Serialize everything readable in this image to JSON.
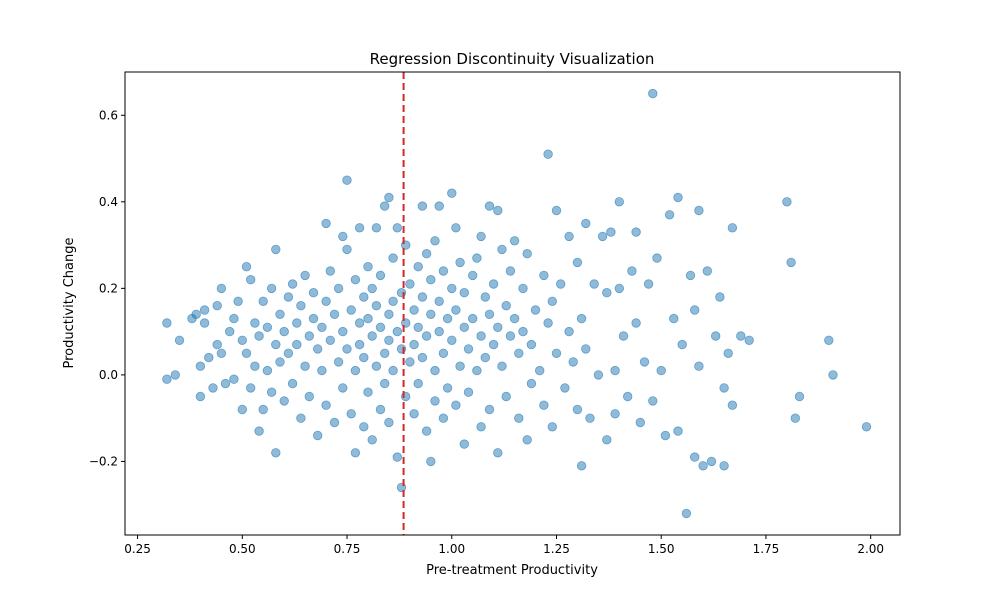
{
  "chart_data": {
    "type": "scatter",
    "title": "Regression Discontinuity Visualization",
    "xlabel": "Pre-treatment Productivity",
    "ylabel": "Productivity Change",
    "xlim": [
      0.22,
      2.07
    ],
    "ylim": [
      -0.37,
      0.7
    ],
    "xticks": [
      0.25,
      0.5,
      0.75,
      1.0,
      1.25,
      1.5,
      1.75,
      2.0
    ],
    "xtick_labels": [
      "0.25",
      "0.50",
      "0.75",
      "1.00",
      "1.25",
      "1.50",
      "1.75",
      "2.00"
    ],
    "yticks": [
      -0.2,
      0.0,
      0.2,
      0.4,
      0.6
    ],
    "ytick_labels": [
      "−0.2",
      "0.0",
      "0.2",
      "0.4",
      "0.6"
    ],
    "grid": false,
    "threshold": {
      "x": 0.885,
      "color": "#d62728",
      "style": "dashed"
    },
    "point_color": "#1f77b4",
    "point_alpha": 0.5,
    "points": [
      [
        0.32,
        -0.01
      ],
      [
        0.32,
        0.12
      ],
      [
        0.34,
        0.0
      ],
      [
        0.35,
        0.08
      ],
      [
        0.38,
        0.13
      ],
      [
        0.39,
        0.14
      ],
      [
        0.4,
        0.02
      ],
      [
        0.4,
        -0.05
      ],
      [
        0.41,
        0.12
      ],
      [
        0.41,
        0.15
      ],
      [
        0.42,
        0.04
      ],
      [
        0.43,
        -0.03
      ],
      [
        0.44,
        0.07
      ],
      [
        0.44,
        0.16
      ],
      [
        0.45,
        0.2
      ],
      [
        0.45,
        0.05
      ],
      [
        0.46,
        -0.02
      ],
      [
        0.47,
        0.1
      ],
      [
        0.48,
        0.13
      ],
      [
        0.48,
        -0.01
      ],
      [
        0.49,
        0.17
      ],
      [
        0.5,
        0.08
      ],
      [
        0.5,
        -0.08
      ],
      [
        0.51,
        0.25
      ],
      [
        0.51,
        0.05
      ],
      [
        0.52,
        0.22
      ],
      [
        0.52,
        -0.03
      ],
      [
        0.53,
        0.12
      ],
      [
        0.53,
        0.02
      ],
      [
        0.54,
        -0.13
      ],
      [
        0.54,
        0.09
      ],
      [
        0.55,
        0.17
      ],
      [
        0.55,
        -0.08
      ],
      [
        0.56,
        0.01
      ],
      [
        0.56,
        0.11
      ],
      [
        0.57,
        0.2
      ],
      [
        0.57,
        -0.04
      ],
      [
        0.58,
        0.29
      ],
      [
        0.58,
        -0.18
      ],
      [
        0.58,
        0.07
      ],
      [
        0.59,
        0.14
      ],
      [
        0.59,
        0.03
      ],
      [
        0.6,
        0.1
      ],
      [
        0.6,
        -0.06
      ],
      [
        0.61,
        0.18
      ],
      [
        0.61,
        0.05
      ],
      [
        0.62,
        0.21
      ],
      [
        0.62,
        -0.02
      ],
      [
        0.63,
        0.12
      ],
      [
        0.63,
        0.07
      ],
      [
        0.64,
        -0.1
      ],
      [
        0.64,
        0.16
      ],
      [
        0.65,
        0.02
      ],
      [
        0.65,
        0.23
      ],
      [
        0.66,
        0.09
      ],
      [
        0.66,
        -0.05
      ],
      [
        0.67,
        0.13
      ],
      [
        0.67,
        0.19
      ],
      [
        0.68,
        -0.14
      ],
      [
        0.68,
        0.06
      ],
      [
        0.69,
        0.11
      ],
      [
        0.69,
        0.01
      ],
      [
        0.7,
        0.35
      ],
      [
        0.7,
        0.17
      ],
      [
        0.7,
        -0.07
      ],
      [
        0.71,
        0.24
      ],
      [
        0.71,
        0.08
      ],
      [
        0.72,
        -0.11
      ],
      [
        0.72,
        0.14
      ],
      [
        0.73,
        0.03
      ],
      [
        0.73,
        0.2
      ],
      [
        0.74,
        0.32
      ],
      [
        0.74,
        -0.03
      ],
      [
        0.74,
        0.1
      ],
      [
        0.75,
        0.45
      ],
      [
        0.75,
        0.29
      ],
      [
        0.75,
        0.06
      ],
      [
        0.76,
        -0.09
      ],
      [
        0.76,
        0.15
      ],
      [
        0.77,
        0.22
      ],
      [
        0.77,
        0.01
      ],
      [
        0.77,
        -0.18
      ],
      [
        0.78,
        0.34
      ],
      [
        0.78,
        0.12
      ],
      [
        0.78,
        0.07
      ],
      [
        0.79,
        -0.12
      ],
      [
        0.79,
        0.18
      ],
      [
        0.79,
        0.04
      ],
      [
        0.8,
        0.25
      ],
      [
        0.8,
        -0.04
      ],
      [
        0.8,
        0.13
      ],
      [
        0.81,
        0.09
      ],
      [
        0.81,
        -0.15
      ],
      [
        0.81,
        0.2
      ],
      [
        0.82,
        0.34
      ],
      [
        0.82,
        0.02
      ],
      [
        0.82,
        0.16
      ],
      [
        0.83,
        -0.08
      ],
      [
        0.83,
        0.11
      ],
      [
        0.83,
        0.23
      ],
      [
        0.84,
        0.39
      ],
      [
        0.84,
        0.05
      ],
      [
        0.84,
        -0.02
      ],
      [
        0.85,
        0.41
      ],
      [
        0.85,
        0.14
      ],
      [
        0.85,
        0.08
      ],
      [
        0.85,
        -0.11
      ],
      [
        0.86,
        0.27
      ],
      [
        0.86,
        0.01
      ],
      [
        0.86,
        0.17
      ],
      [
        0.87,
        -0.19
      ],
      [
        0.87,
        0.1
      ],
      [
        0.87,
        0.34
      ],
      [
        0.88,
        -0.26
      ],
      [
        0.88,
        0.06
      ],
      [
        0.88,
        0.19
      ],
      [
        0.89,
        0.3
      ],
      [
        0.89,
        -0.05
      ],
      [
        0.89,
        0.12
      ],
      [
        0.9,
        0.03
      ],
      [
        0.9,
        0.21
      ],
      [
        0.91,
        -0.09
      ],
      [
        0.91,
        0.15
      ],
      [
        0.91,
        0.07
      ],
      [
        0.92,
        0.25
      ],
      [
        0.92,
        -0.02
      ],
      [
        0.92,
        0.11
      ],
      [
        0.93,
        0.39
      ],
      [
        0.93,
        0.18
      ],
      [
        0.93,
        0.04
      ],
      [
        0.94,
        -0.13
      ],
      [
        0.94,
        0.28
      ],
      [
        0.94,
        0.09
      ],
      [
        0.95,
        -0.2
      ],
      [
        0.95,
        0.14
      ],
      [
        0.95,
        0.22
      ],
      [
        0.96,
        0.01
      ],
      [
        0.96,
        0.31
      ],
      [
        0.96,
        -0.06
      ],
      [
        0.97,
        0.39
      ],
      [
        0.97,
        0.1
      ],
      [
        0.97,
        0.17
      ],
      [
        0.98,
        -0.1
      ],
      [
        0.98,
        0.05
      ],
      [
        0.98,
        0.24
      ],
      [
        0.99,
        0.13
      ],
      [
        0.99,
        -0.03
      ],
      [
        1.0,
        0.42
      ],
      [
        1.0,
        0.2
      ],
      [
        1.0,
        0.08
      ],
      [
        1.01,
        -0.07
      ],
      [
        1.01,
        0.34
      ],
      [
        1.01,
        0.15
      ],
      [
        1.02,
        0.02
      ],
      [
        1.02,
        0.26
      ],
      [
        1.03,
        -0.16
      ],
      [
        1.03,
        0.11
      ],
      [
        1.03,
        0.19
      ],
      [
        1.04,
        0.06
      ],
      [
        1.04,
        -0.04
      ],
      [
        1.05,
        0.23
      ],
      [
        1.05,
        0.13
      ],
      [
        1.06,
        0.01
      ],
      [
        1.06,
        0.27
      ],
      [
        1.07,
        -0.12
      ],
      [
        1.07,
        0.09
      ],
      [
        1.07,
        0.32
      ],
      [
        1.08,
        0.18
      ],
      [
        1.08,
        0.04
      ],
      [
        1.09,
        0.39
      ],
      [
        1.09,
        -0.08
      ],
      [
        1.09,
        0.14
      ],
      [
        1.1,
        0.21
      ],
      [
        1.1,
        0.07
      ],
      [
        1.11,
        0.38
      ],
      [
        1.11,
        -0.18
      ],
      [
        1.11,
        0.11
      ],
      [
        1.12,
        0.29
      ],
      [
        1.12,
        0.02
      ],
      [
        1.13,
        0.16
      ],
      [
        1.13,
        -0.05
      ],
      [
        1.14,
        0.24
      ],
      [
        1.14,
        0.09
      ],
      [
        1.15,
        0.13
      ],
      [
        1.15,
        0.31
      ],
      [
        1.16,
        -0.1
      ],
      [
        1.16,
        0.05
      ],
      [
        1.17,
        0.2
      ],
      [
        1.17,
        0.1
      ],
      [
        1.18,
        -0.15
      ],
      [
        1.18,
        0.28
      ],
      [
        1.19,
        0.07
      ],
      [
        1.19,
        -0.02
      ],
      [
        1.2,
        0.15
      ],
      [
        1.21,
        0.01
      ],
      [
        1.22,
        0.23
      ],
      [
        1.22,
        -0.07
      ],
      [
        1.23,
        0.51
      ],
      [
        1.23,
        0.12
      ],
      [
        1.24,
        0.17
      ],
      [
        1.24,
        -0.12
      ],
      [
        1.25,
        0.38
      ],
      [
        1.25,
        0.05
      ],
      [
        1.26,
        0.21
      ],
      [
        1.27,
        -0.03
      ],
      [
        1.28,
        0.32
      ],
      [
        1.28,
        0.1
      ],
      [
        1.29,
        0.03
      ],
      [
        1.3,
        0.26
      ],
      [
        1.3,
        -0.08
      ],
      [
        1.31,
        0.13
      ],
      [
        1.31,
        -0.21
      ],
      [
        1.32,
        0.35
      ],
      [
        1.32,
        0.06
      ],
      [
        1.33,
        -0.1
      ],
      [
        1.34,
        0.21
      ],
      [
        1.35,
        0.0
      ],
      [
        1.36,
        0.32
      ],
      [
        1.37,
        0.19
      ],
      [
        1.37,
        -0.15
      ],
      [
        1.38,
        0.33
      ],
      [
        1.39,
        0.01
      ],
      [
        1.39,
        -0.09
      ],
      [
        1.4,
        0.4
      ],
      [
        1.4,
        0.2
      ],
      [
        1.41,
        0.09
      ],
      [
        1.42,
        -0.05
      ],
      [
        1.43,
        0.24
      ],
      [
        1.44,
        0.12
      ],
      [
        1.44,
        0.33
      ],
      [
        1.45,
        -0.11
      ],
      [
        1.46,
        0.03
      ],
      [
        1.47,
        0.21
      ],
      [
        1.48,
        0.65
      ],
      [
        1.48,
        -0.06
      ],
      [
        1.49,
        0.27
      ],
      [
        1.5,
        0.01
      ],
      [
        1.51,
        -0.14
      ],
      [
        1.52,
        0.37
      ],
      [
        1.53,
        0.13
      ],
      [
        1.54,
        0.41
      ],
      [
        1.54,
        -0.13
      ],
      [
        1.55,
        0.07
      ],
      [
        1.56,
        -0.32
      ],
      [
        1.57,
        0.23
      ],
      [
        1.58,
        0.15
      ],
      [
        1.58,
        -0.19
      ],
      [
        1.59,
        0.38
      ],
      [
        1.59,
        0.02
      ],
      [
        1.6,
        -0.21
      ],
      [
        1.61,
        0.24
      ],
      [
        1.62,
        -0.2
      ],
      [
        1.63,
        0.09
      ],
      [
        1.64,
        0.18
      ],
      [
        1.65,
        -0.03
      ],
      [
        1.65,
        -0.21
      ],
      [
        1.66,
        0.05
      ],
      [
        1.67,
        0.34
      ],
      [
        1.67,
        -0.07
      ],
      [
        1.69,
        0.09
      ],
      [
        1.71,
        0.08
      ],
      [
        1.8,
        0.4
      ],
      [
        1.81,
        0.26
      ],
      [
        1.82,
        -0.1
      ],
      [
        1.83,
        -0.05
      ],
      [
        1.9,
        0.08
      ],
      [
        1.91,
        0.0
      ],
      [
        1.99,
        -0.12
      ]
    ]
  }
}
